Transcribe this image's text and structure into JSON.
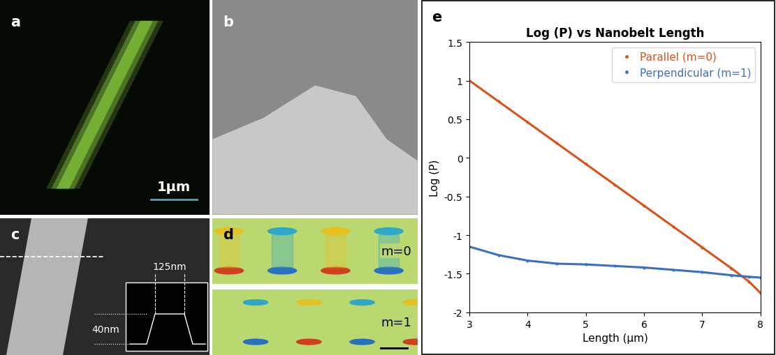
{
  "panels": {
    "a": {
      "label": "a",
      "scale_bar": "1μm"
    },
    "b": {
      "label": "b"
    },
    "c": {
      "label": "c",
      "width": "125nm",
      "height": "40nm"
    },
    "d": {
      "label": "d",
      "modes": [
        "m=0",
        "m=1"
      ]
    },
    "e": {
      "label": "e"
    }
  },
  "chart_data": {
    "type": "line",
    "title": "Log (P) vs Nanobelt Length",
    "x_label": "Length (μm)",
    "y_label": "Log (P)",
    "x": [
      3,
      3.5,
      4,
      4.5,
      5,
      5.5,
      6,
      6.5,
      7,
      7.5,
      7.8,
      8
    ],
    "series": [
      {
        "name": "Parallel (m=0)",
        "color": "#d95319",
        "marker": "point",
        "line_style": "solid",
        "values": [
          1.0,
          0.73,
          0.46,
          0.19,
          -0.08,
          -0.35,
          -0.62,
          -0.89,
          -1.16,
          -1.43,
          -1.6,
          -1.75
        ]
      },
      {
        "name": "Perpendicular (m=1)",
        "color": "#3a6fc4",
        "marker": "point",
        "line_style": "solid",
        "values": [
          -1.15,
          -1.26,
          -1.33,
          -1.37,
          -1.38,
          -1.4,
          -1.42,
          -1.45,
          -1.48,
          -1.52,
          -1.54,
          -1.55
        ]
      }
    ],
    "xlim": [
      3,
      8
    ],
    "xticks": [
      3,
      4,
      5,
      6,
      7,
      8
    ],
    "ylim": [
      -2,
      1.5
    ],
    "yticks": [
      -2,
      -1.5,
      -1,
      -0.5,
      0,
      0.5,
      1,
      1.5
    ],
    "legend": "upper right",
    "grid": false
  }
}
